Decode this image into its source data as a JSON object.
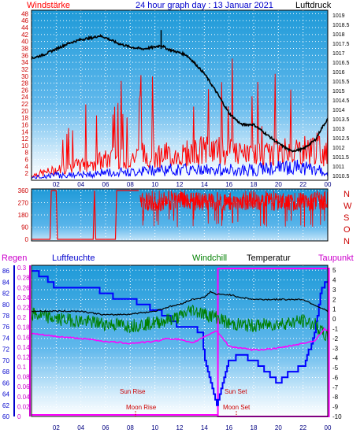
{
  "colors": {
    "wind": "#ff0000",
    "pressure": "#000000",
    "gust": "#0000ff",
    "humidity": "#0000ff",
    "windchill": "#008000",
    "temperature": "#000000",
    "dewpoint": "#ff00ff",
    "rain": "#0000ff",
    "sunmoon": "#cc0000",
    "night_box": "#ff00ff",
    "grid": "#ffffff"
  },
  "header": {
    "left": "Windstärke",
    "center": "24 hour graph day : 13 Januar 2021",
    "right": "Luftdruck"
  },
  "legend": {
    "regen": "Regen",
    "luftfeuchte": "Luftfeuchte",
    "windchill": "Windchill",
    "temperatur": "Temperatur",
    "taupunkt": "Taupunkt"
  },
  "direction_labels": [
    "N",
    "W",
    "S",
    "O",
    "N"
  ],
  "sun_moon": {
    "sun_rise": "Sun Rise",
    "moon_rise": "Moon Rise",
    "sun_set": "Sun Set",
    "moon_set": "Moon Set"
  },
  "chart_data": [
    {
      "type": "line",
      "name": "wind_pressure",
      "x_ticks": [
        "02",
        "04",
        "06",
        "08",
        "10",
        "12",
        "14",
        "16",
        "18",
        "20",
        "22",
        "00"
      ],
      "xlim": [
        0,
        24
      ],
      "y_left_ticks": [
        "48",
        "46",
        "44",
        "42",
        "40",
        "38",
        "36",
        "34",
        "32",
        "30",
        "28",
        "26",
        "24",
        "22",
        "20",
        "18",
        "16",
        "14",
        "12",
        "10",
        "8",
        "6",
        "4",
        "2"
      ],
      "ylim_left": [
        0,
        49
      ],
      "y_right_ticks": [
        "1019",
        "1018.5",
        "1018",
        "1017.5",
        "1017",
        "1016.5",
        "1016",
        "1015.5",
        "1015",
        "1014.5",
        "1014",
        "1013.5",
        "1013",
        "1012.5",
        "1012",
        "1011.5",
        "1011",
        "1010.5"
      ],
      "ylim_right": [
        1010.25,
        1019.25
      ],
      "pressure_points": [
        [
          0,
          1016.7
        ],
        [
          1,
          1016.9
        ],
        [
          2,
          1017.2
        ],
        [
          3,
          1017.5
        ],
        [
          4,
          1017.7
        ],
        [
          5,
          1017.8
        ],
        [
          5.5,
          1017.9
        ],
        [
          6,
          1017.8
        ],
        [
          7,
          1017.5
        ],
        [
          8,
          1017.3
        ],
        [
          9,
          1017.2
        ],
        [
          10,
          1017.3
        ],
        [
          10.5,
          1017.4
        ],
        [
          11,
          1017.2
        ],
        [
          12,
          1017.0
        ],
        [
          12.5,
          1016.9
        ],
        [
          13,
          1016.6
        ],
        [
          14,
          1015.9
        ],
        [
          15,
          1014.9
        ],
        [
          16,
          1013.8
        ],
        [
          17,
          1013.2
        ],
        [
          18,
          1013.2
        ],
        [
          19,
          1012.7
        ],
        [
          20,
          1012.2
        ],
        [
          21,
          1011.8
        ],
        [
          22,
          1011.9
        ],
        [
          23,
          1012.4
        ],
        [
          23.5,
          1013.0
        ],
        [
          24,
          1013.5
        ]
      ],
      "wind_envelope": [
        [
          0,
          2
        ],
        [
          1,
          3
        ],
        [
          2,
          4
        ],
        [
          3,
          5
        ],
        [
          4,
          6
        ],
        [
          5,
          7
        ],
        [
          6,
          8
        ],
        [
          7,
          9
        ],
        [
          8,
          9
        ],
        [
          9,
          10
        ],
        [
          10,
          10
        ],
        [
          11,
          10
        ],
        [
          12,
          10
        ],
        [
          13,
          11
        ],
        [
          14,
          12
        ],
        [
          15,
          12
        ],
        [
          16,
          11
        ],
        [
          17,
          10
        ],
        [
          18,
          10
        ],
        [
          19,
          10
        ],
        [
          20,
          11
        ],
        [
          21,
          12
        ],
        [
          22,
          12
        ],
        [
          23,
          13
        ],
        [
          24,
          10
        ]
      ],
      "gust_envelope": [
        [
          0,
          1
        ],
        [
          2,
          2
        ],
        [
          4,
          2
        ],
        [
          6,
          3
        ],
        [
          8,
          3
        ],
        [
          10,
          4
        ],
        [
          12,
          4
        ],
        [
          14,
          4
        ],
        [
          16,
          4
        ],
        [
          18,
          4
        ],
        [
          20,
          5
        ],
        [
          22,
          5
        ],
        [
          24,
          3
        ]
      ]
    },
    {
      "type": "line",
      "name": "wind_direction",
      "y_ticks": [
        "360",
        "270",
        "180",
        "90",
        "0"
      ],
      "ylim": [
        0,
        360
      ],
      "direction_points": [
        [
          0,
          0
        ],
        [
          1.5,
          0
        ],
        [
          1.6,
          360
        ],
        [
          2.0,
          360
        ],
        [
          2.1,
          0
        ],
        [
          5.0,
          0
        ],
        [
          5.1,
          360
        ],
        [
          5.2,
          0
        ],
        [
          6.8,
          0
        ],
        [
          6.9,
          360
        ],
        [
          8.7,
          360
        ],
        [
          8.8,
          300
        ],
        [
          24,
          280
        ]
      ]
    },
    {
      "type": "line",
      "name": "humidity_temperature",
      "y_left_ticks": [
        "86",
        "84",
        "82",
        "80",
        "78",
        "76",
        "74",
        "72",
        "70",
        "68",
        "66",
        "64",
        "62",
        "60"
      ],
      "ylim_humidity": [
        60,
        87
      ],
      "y_rain_ticks": [
        "0.3",
        "0.28",
        "0.26",
        "0.24",
        "0.22",
        "0.2",
        "0.18",
        "0.16",
        "0.14",
        "0.12",
        "0.1",
        "0.08",
        "0.06",
        "0.04",
        "0.02",
        "0"
      ],
      "ylim_rain": [
        0,
        0.3
      ],
      "y_right_ticks": [
        "5",
        "4",
        "3",
        "2",
        "1",
        "0",
        "-1",
        "-2",
        "-3",
        "-4",
        "-5",
        "-6",
        "-7",
        "-8",
        "-9",
        "-10"
      ],
      "ylim_temp": [
        -10,
        5.5
      ],
      "humidity_points": [
        [
          0,
          86
        ],
        [
          1,
          85
        ],
        [
          2,
          83
        ],
        [
          5,
          83
        ],
        [
          6,
          82
        ],
        [
          7,
          81
        ],
        [
          8,
          81
        ],
        [
          9,
          80
        ],
        [
          10,
          79
        ],
        [
          11,
          78
        ],
        [
          12,
          76
        ],
        [
          13,
          76
        ],
        [
          13.8,
          75
        ],
        [
          14,
          70
        ],
        [
          14.5,
          66
        ],
        [
          15,
          62
        ],
        [
          15.5,
          66
        ],
        [
          16,
          70
        ],
        [
          17,
          71
        ],
        [
          18,
          70
        ],
        [
          19,
          68
        ],
        [
          20,
          66
        ],
        [
          21,
          68
        ],
        [
          22,
          69
        ],
        [
          22.5,
          72
        ],
        [
          23,
          76
        ],
        [
          23.5,
          83
        ],
        [
          24,
          84
        ]
      ],
      "temperature_points": [
        [
          0,
          0.8
        ],
        [
          2,
          0.8
        ],
        [
          4,
          0.8
        ],
        [
          6,
          0.4
        ],
        [
          8,
          0.5
        ],
        [
          10,
          0.8
        ],
        [
          11,
          1.2
        ],
        [
          12,
          1.5
        ],
        [
          13,
          2.0
        ],
        [
          14,
          2.2
        ],
        [
          14.5,
          2.8
        ],
        [
          15,
          2.5
        ],
        [
          16,
          2.5
        ],
        [
          17,
          2.2
        ],
        [
          18,
          2.0
        ],
        [
          20,
          2.0
        ],
        [
          22,
          2.0
        ],
        [
          23,
          1.4
        ],
        [
          24,
          0.8
        ]
      ],
      "windchill_points": [
        [
          0,
          0.5
        ],
        [
          2,
          0.0
        ],
        [
          4,
          -0.2
        ],
        [
          6,
          -0.5
        ],
        [
          8,
          -0.7
        ],
        [
          10,
          -0.4
        ],
        [
          12,
          0.2
        ],
        [
          13,
          1.0
        ],
        [
          14,
          0.5
        ],
        [
          15,
          0.2
        ],
        [
          16,
          -0.5
        ],
        [
          18,
          -0.7
        ],
        [
          20,
          -0.5
        ],
        [
          22,
          -0.2
        ],
        [
          23,
          -0.6
        ],
        [
          24,
          -2.0
        ]
      ],
      "dewpoint_points": [
        [
          0,
          -1.5
        ],
        [
          2,
          -1.8
        ],
        [
          4,
          -2.0
        ],
        [
          6,
          -2.3
        ],
        [
          8,
          -2.5
        ],
        [
          10,
          -2.3
        ],
        [
          11,
          -2.0
        ],
        [
          12,
          -2.1
        ],
        [
          13,
          -2.5
        ],
        [
          14,
          -1.8
        ],
        [
          15,
          -1.2
        ],
        [
          16,
          -2.8
        ],
        [
          18,
          -3.2
        ],
        [
          20,
          -3.0
        ],
        [
          22,
          -2.5
        ],
        [
          23,
          -2.2
        ],
        [
          23.7,
          -1.0
        ],
        [
          24,
          -1.2
        ]
      ],
      "night_box": [
        15.1,
        24.1
      ]
    }
  ]
}
